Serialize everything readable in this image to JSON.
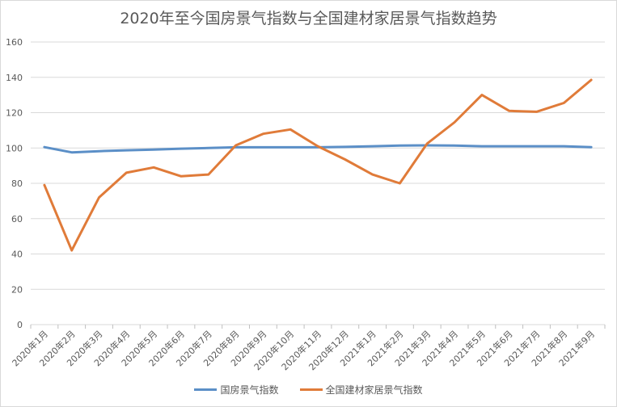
{
  "chart_data": {
    "type": "line",
    "title": "2020年至今国房景气指数与全国建材家居景气指数趋势",
    "xlabel": "",
    "ylabel": "",
    "ylim": [
      0,
      160
    ],
    "yticks": [
      0,
      20,
      40,
      60,
      80,
      100,
      120,
      140,
      160
    ],
    "grid": true,
    "legend_position": "bottom",
    "categories": [
      "2020年1月",
      "2020年2月",
      "2020年3月",
      "2020年4月",
      "2020年5月",
      "2020年6月",
      "2020年7月",
      "2020年8月",
      "2020年9月",
      "2020年10月",
      "2020年11月",
      "2020年12月",
      "2021年1月",
      "2021年2月",
      "2021年3月",
      "2021年4月",
      "2021年5月",
      "2021年6月",
      "2021年7月",
      "2021年8月",
      "2021年9月"
    ],
    "series": [
      {
        "name": "国房景气指数",
        "color": "#5b8fc7",
        "values": [
          100.5,
          97.5,
          98.2,
          98.7,
          99.1,
          99.6,
          100.0,
          100.4,
          100.4,
          100.4,
          100.4,
          100.6,
          101.0,
          101.4,
          101.5,
          101.4,
          101.0,
          101.0,
          101.0,
          101.0,
          100.5
        ]
      },
      {
        "name": "全国建材家居景气指数",
        "color": "#e07b39",
        "values": [
          79,
          42,
          72,
          86,
          89,
          84,
          85,
          101.5,
          108,
          110.5,
          101,
          93.5,
          85,
          80,
          102.5,
          114.5,
          130,
          121,
          120.5,
          125.5,
          138.5
        ]
      }
    ]
  }
}
